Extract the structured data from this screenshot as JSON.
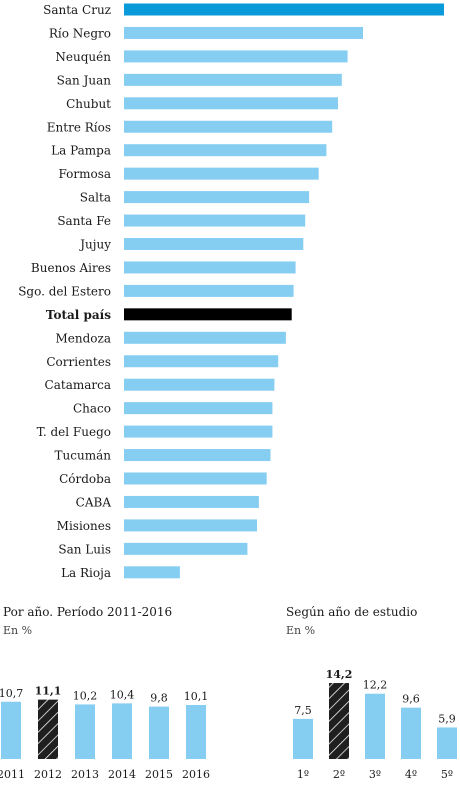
{
  "colors": {
    "bar": "#86cdf2",
    "highlight": "#0a9ad9",
    "total": "#000000",
    "hatch_bg": "#1f1f1f",
    "hatch_line": "#ffffff"
  },
  "chart_data": [
    {
      "type": "bar",
      "orientation": "horizontal",
      "categories": [
        "Santa Cruz",
        "Río Negro",
        "Neuquén",
        "San Juan",
        "Chubut",
        "Entre Ríos",
        "La Pampa",
        "Formosa",
        "Salta",
        "Santa Fe",
        "Jujuy",
        "Buenos Aires",
        "Sgo. del Estero",
        "Total país",
        "Mendoza",
        "Corrientes",
        "Catamarca",
        "Chaco",
        "T. del Fuego",
        "Tucumán",
        "Córdoba",
        "CABA",
        "Misiones",
        "San Luis",
        "La Rioja"
      ],
      "values": [
        16.6,
        12.4,
        11.6,
        11.3,
        11.1,
        10.8,
        10.5,
        10.1,
        9.6,
        9.4,
        9.3,
        8.9,
        8.8,
        8.7,
        8.4,
        8.0,
        7.8,
        7.7,
        7.7,
        7.6,
        7.4,
        7.0,
        6.9,
        6.4,
        2.9
      ],
      "bold_categories": [
        "Total país"
      ],
      "highlight_category": "Santa Cruz",
      "total_category": "Total país",
      "xlim": [
        0,
        17
      ]
    },
    {
      "type": "bar",
      "title": "Por año. Período 2011-2016",
      "subtitle": "En %",
      "categories": [
        "2011",
        "2012",
        "2013",
        "2014",
        "2015",
        "2016"
      ],
      "values": [
        10.7,
        11.1,
        10.2,
        10.4,
        9.8,
        10.1
      ],
      "value_labels": [
        "10,7",
        "11,1",
        "10,2",
        "10,4",
        "9,8",
        "10,1"
      ],
      "hatched_category": "2012",
      "ylim": [
        0,
        16
      ]
    },
    {
      "type": "bar",
      "title": "Según año de estudio",
      "subtitle": "En %",
      "categories": [
        "1º",
        "2º",
        "3º",
        "4º",
        "5º"
      ],
      "values": [
        7.5,
        14.2,
        12.2,
        9.6,
        5.9
      ],
      "value_labels": [
        "7,5",
        "14,2",
        "12,2",
        "9,6",
        "5,9"
      ],
      "hatched_category": "2º",
      "ylim": [
        0,
        16
      ]
    }
  ]
}
